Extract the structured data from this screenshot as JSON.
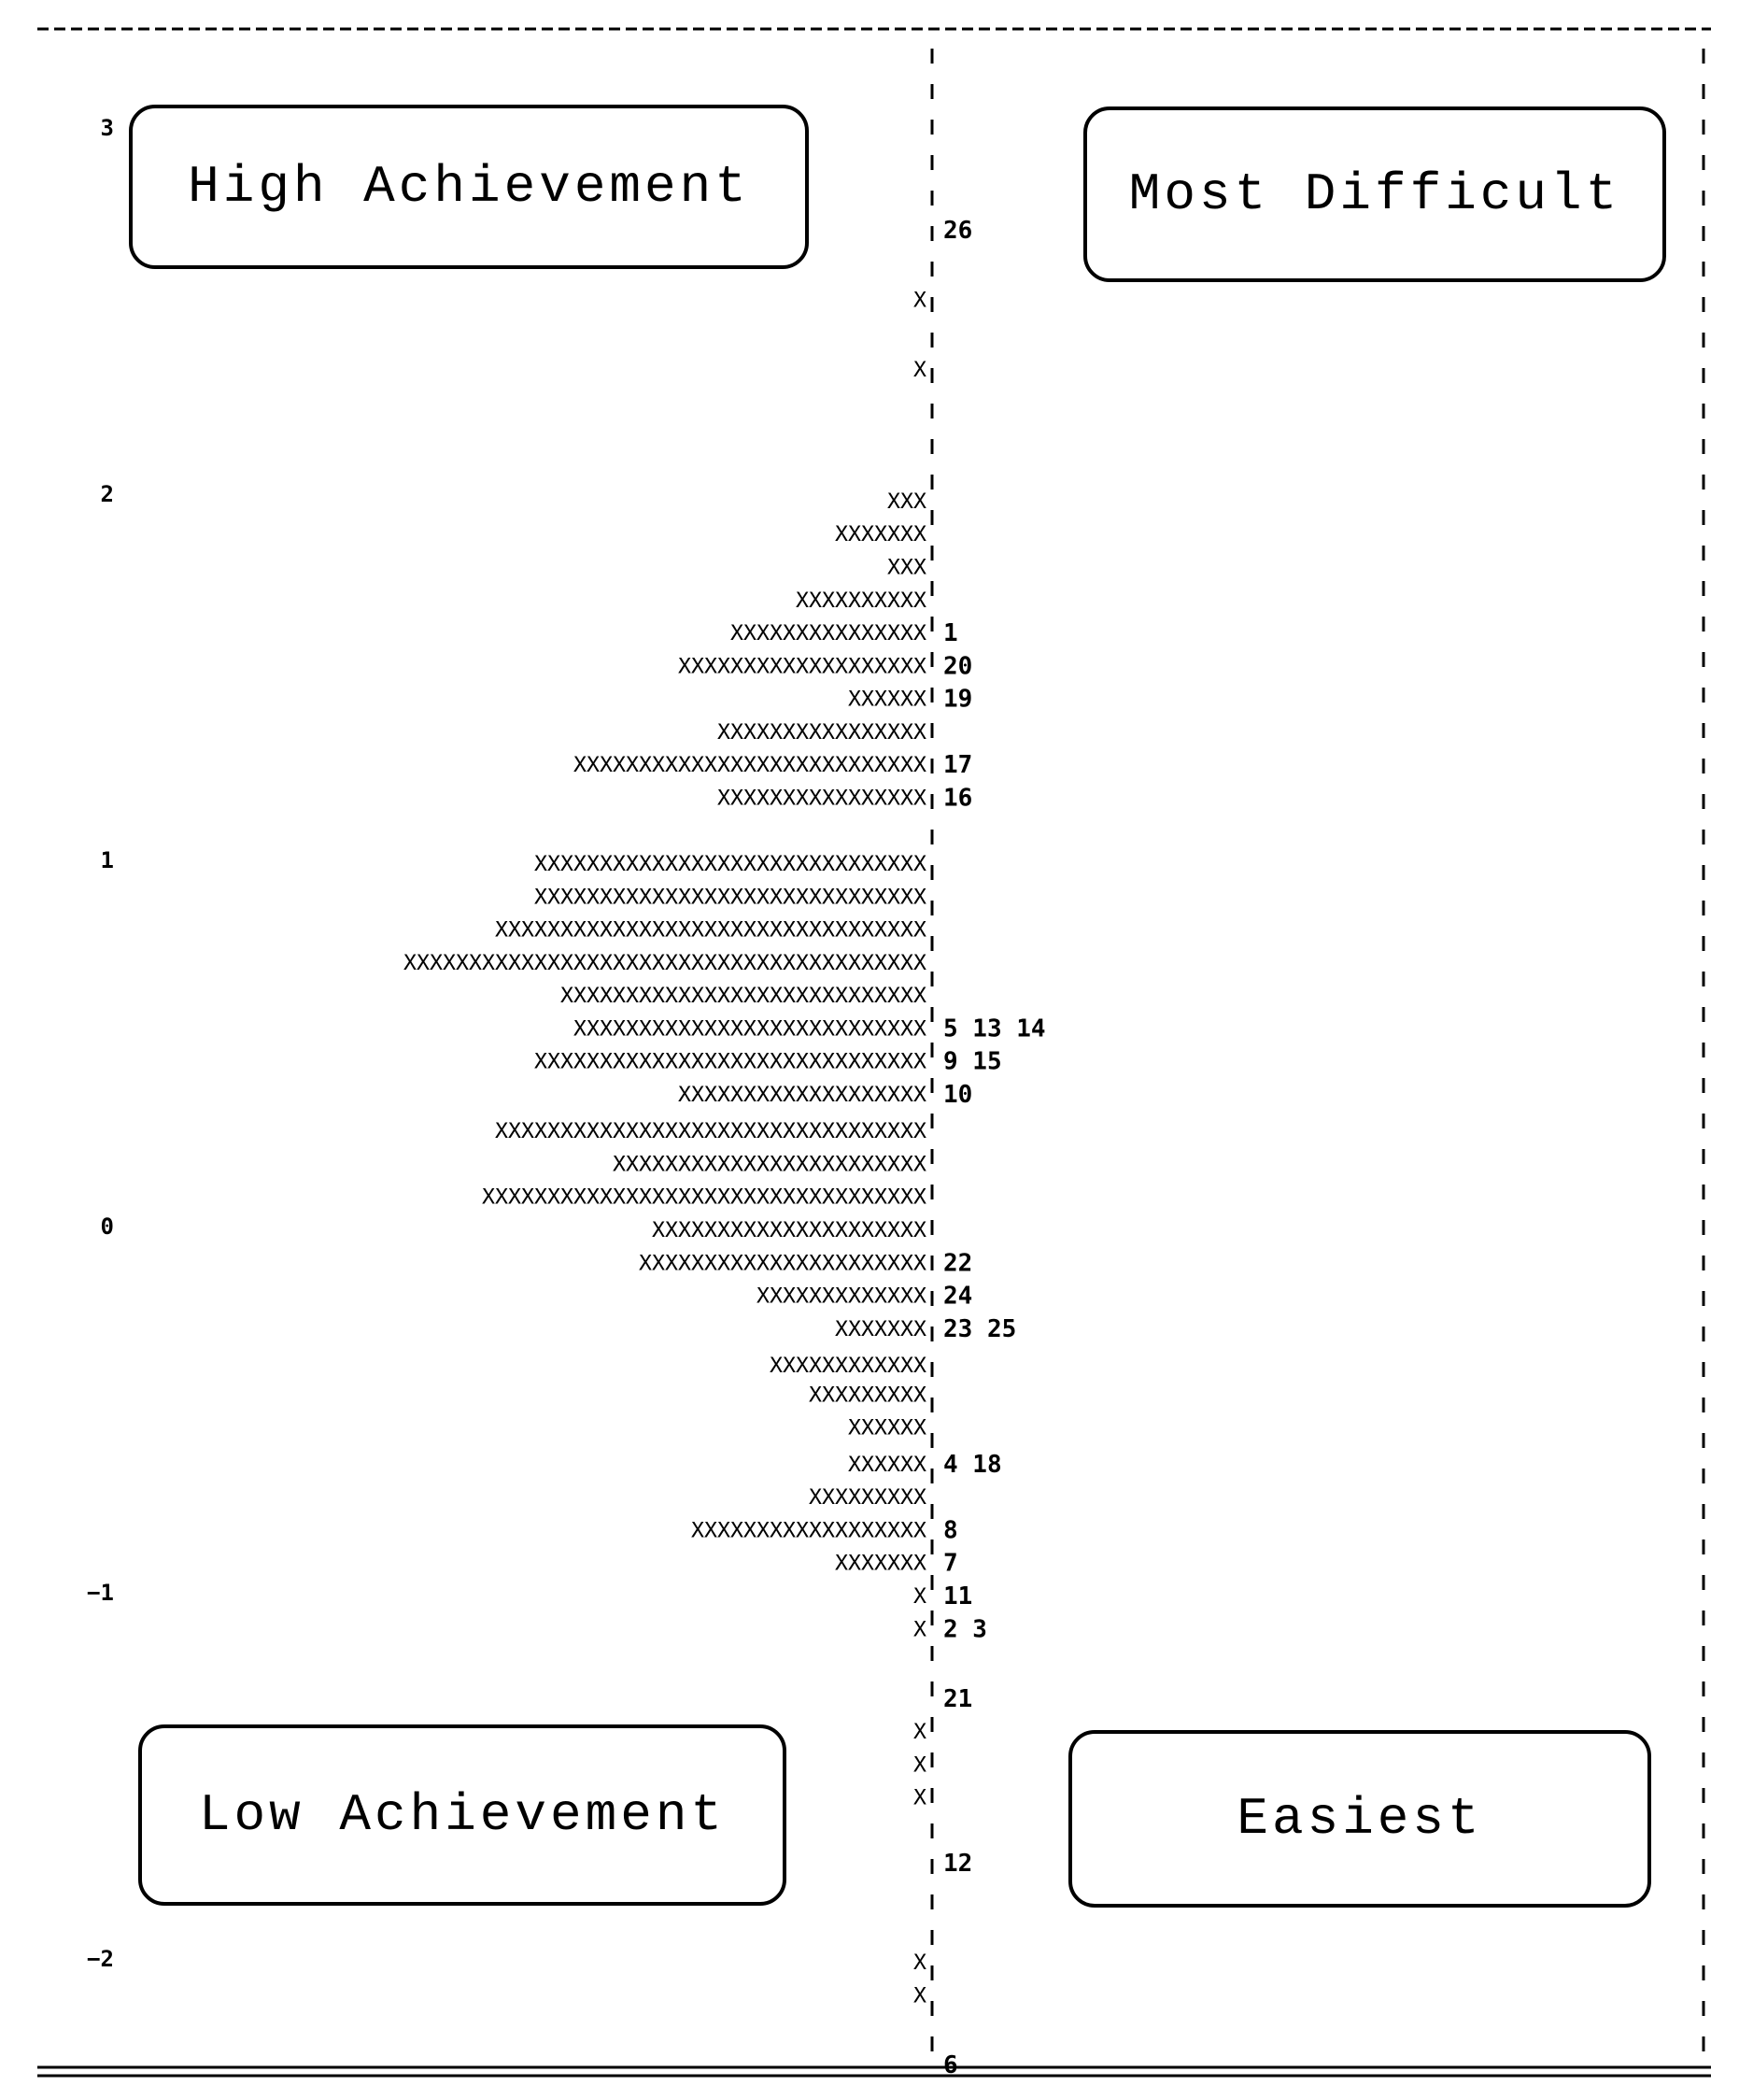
{
  "labels": {
    "top_left": "High Achievement",
    "top_right": "Most Difficult",
    "bottom_left": "Low Achievement",
    "bottom_right": "Easiest"
  },
  "chart_data": {
    "type": "wright-map",
    "title": "",
    "xlabel": "",
    "ylabel": "",
    "ylim": [
      -2.3,
      3.2
    ],
    "y_ticks": [
      3,
      2,
      1,
      0,
      -1,
      -2
    ],
    "grid": false,
    "person_symbol": "X",
    "persons": [
      {
        "y": 2.54,
        "count": 1
      },
      {
        "y": 2.35,
        "count": 1
      },
      {
        "y": 1.99,
        "count": 3
      },
      {
        "y": 1.9,
        "count": 7
      },
      {
        "y": 1.81,
        "count": 3
      },
      {
        "y": 1.72,
        "count": 10
      },
      {
        "y": 1.63,
        "count": 15
      },
      {
        "y": 1.54,
        "count": 19
      },
      {
        "y": 1.45,
        "count": 6
      },
      {
        "y": 1.36,
        "count": 16
      },
      {
        "y": 1.27,
        "count": 27
      },
      {
        "y": 1.18,
        "count": 16
      },
      {
        "y": 1.0,
        "count": 30
      },
      {
        "y": 0.91,
        "count": 30
      },
      {
        "y": 0.82,
        "count": 33
      },
      {
        "y": 0.73,
        "count": 40
      },
      {
        "y": 0.64,
        "count": 28
      },
      {
        "y": 0.55,
        "count": 27
      },
      {
        "y": 0.46,
        "count": 30
      },
      {
        "y": 0.37,
        "count": 19
      },
      {
        "y": 0.27,
        "count": 33
      },
      {
        "y": 0.18,
        "count": 24
      },
      {
        "y": 0.09,
        "count": 34
      },
      {
        "y": 0.0,
        "count": 21
      },
      {
        "y": -0.09,
        "count": 22
      },
      {
        "y": -0.18,
        "count": 13
      },
      {
        "y": -0.27,
        "count": 7
      },
      {
        "y": -0.37,
        "count": 12
      },
      {
        "y": -0.45,
        "count": 9
      },
      {
        "y": -0.54,
        "count": 6
      },
      {
        "y": -0.64,
        "count": 6
      },
      {
        "y": -0.73,
        "count": 9
      },
      {
        "y": -0.82,
        "count": 18
      },
      {
        "y": -0.91,
        "count": 7
      },
      {
        "y": -1.0,
        "count": 1
      },
      {
        "y": -1.09,
        "count": 1
      },
      {
        "y": -1.37,
        "count": 1
      },
      {
        "y": -1.46,
        "count": 1
      },
      {
        "y": -1.55,
        "count": 1
      },
      {
        "y": -2.0,
        "count": 1
      },
      {
        "y": -2.09,
        "count": 1
      }
    ],
    "items": [
      {
        "y": 2.73,
        "label": "26"
      },
      {
        "y": 1.63,
        "label": "1"
      },
      {
        "y": 1.54,
        "label": "20"
      },
      {
        "y": 1.45,
        "label": "19"
      },
      {
        "y": 1.27,
        "label": "17"
      },
      {
        "y": 1.18,
        "label": "16"
      },
      {
        "y": 0.55,
        "label": "5 13 14"
      },
      {
        "y": 0.46,
        "label": "9 15"
      },
      {
        "y": 0.37,
        "label": "10"
      },
      {
        "y": -0.09,
        "label": "22"
      },
      {
        "y": -0.18,
        "label": "24"
      },
      {
        "y": -0.27,
        "label": "23 25"
      },
      {
        "y": -0.64,
        "label": "4 18"
      },
      {
        "y": -0.82,
        "label": "8"
      },
      {
        "y": -0.91,
        "label": "7"
      },
      {
        "y": -1.0,
        "label": "11"
      },
      {
        "y": -1.09,
        "label": "2 3"
      },
      {
        "y": -1.28,
        "label": "21"
      },
      {
        "y": -1.73,
        "label": "12"
      },
      {
        "y": -2.28,
        "label": "6"
      }
    ]
  }
}
